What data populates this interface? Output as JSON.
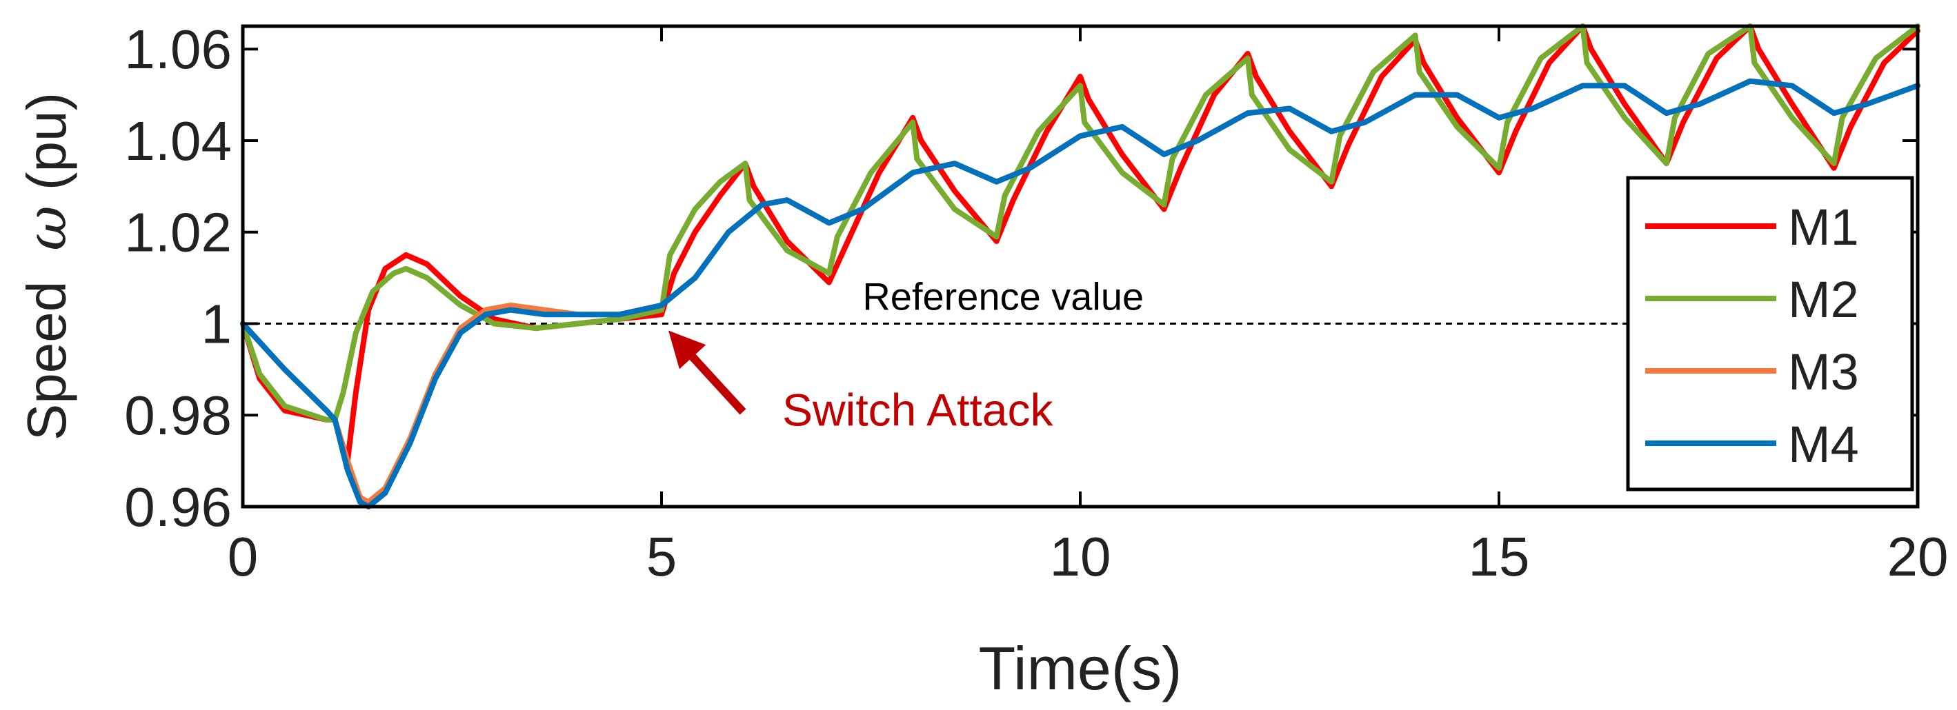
{
  "chart_data": {
    "type": "line",
    "xlabel": "Time(s)",
    "ylabel_prefix": "Speed",
    "ylabel_symbol": "ω",
    "ylabel_suffix": "(pu)",
    "xlim": [
      0,
      20
    ],
    "ylim": [
      0.96,
      1.065
    ],
    "x_ticks": [
      0,
      5,
      10,
      15,
      20
    ],
    "x_tick_labels": [
      "0",
      "5",
      "10",
      "15",
      "20"
    ],
    "y_ticks": [
      0.96,
      0.98,
      1.0,
      1.02,
      1.04,
      1.06
    ],
    "y_tick_labels": [
      "0.96",
      "0.98",
      "1",
      "1.02",
      "1.04",
      "1.06"
    ],
    "grid": false,
    "legend_position": "right",
    "reference": {
      "value": 1.0,
      "label": "Reference value",
      "style": "dashed"
    },
    "annotation": {
      "text": "Switch Attack",
      "x": 5,
      "y": 1.0,
      "color": "#c00000"
    },
    "series": [
      {
        "name": "M1",
        "color": "#ff0000",
        "points": [
          [
            0,
            1.0
          ],
          [
            0.2,
            0.988
          ],
          [
            0.5,
            0.981
          ],
          [
            1.0,
            0.979
          ],
          [
            1.1,
            0.979
          ],
          [
            1.25,
            0.97
          ],
          [
            1.35,
            0.985
          ],
          [
            1.5,
            1.003
          ],
          [
            1.7,
            1.012
          ],
          [
            1.95,
            1.015
          ],
          [
            2.2,
            1.013
          ],
          [
            2.6,
            1.006
          ],
          [
            3.0,
            1.001
          ],
          [
            3.5,
            0.999
          ],
          [
            4.0,
            1.0
          ],
          [
            4.5,
            1.001
          ],
          [
            5.0,
            1.002
          ],
          [
            5.15,
            1.011
          ],
          [
            5.4,
            1.02
          ],
          [
            5.7,
            1.028
          ],
          [
            6.0,
            1.035
          ],
          [
            6.1,
            1.03
          ],
          [
            6.5,
            1.018
          ],
          [
            7.0,
            1.009
          ],
          [
            7.2,
            1.017
          ],
          [
            7.6,
            1.033
          ],
          [
            8.0,
            1.045
          ],
          [
            8.1,
            1.04
          ],
          [
            8.5,
            1.029
          ],
          [
            9.0,
            1.018
          ],
          [
            9.2,
            1.027
          ],
          [
            9.6,
            1.042
          ],
          [
            10.0,
            1.054
          ],
          [
            10.1,
            1.049
          ],
          [
            10.5,
            1.037
          ],
          [
            11.0,
            1.025
          ],
          [
            11.2,
            1.034
          ],
          [
            11.6,
            1.05
          ],
          [
            12.0,
            1.059
          ],
          [
            12.1,
            1.054
          ],
          [
            12.5,
            1.042
          ],
          [
            13.0,
            1.03
          ],
          [
            13.2,
            1.039
          ],
          [
            13.6,
            1.054
          ],
          [
            14.0,
            1.062
          ],
          [
            14.1,
            1.057
          ],
          [
            14.5,
            1.045
          ],
          [
            15.0,
            1.033
          ],
          [
            15.2,
            1.042
          ],
          [
            15.6,
            1.057
          ],
          [
            16.0,
            1.065
          ],
          [
            16.1,
            1.06
          ],
          [
            16.5,
            1.048
          ],
          [
            17.0,
            1.035
          ],
          [
            17.2,
            1.044
          ],
          [
            17.6,
            1.058
          ],
          [
            18.0,
            1.065
          ],
          [
            18.1,
            1.06
          ],
          [
            18.5,
            1.048
          ],
          [
            19.0,
            1.034
          ],
          [
            19.2,
            1.043
          ],
          [
            19.6,
            1.057
          ],
          [
            20.0,
            1.064
          ]
        ]
      },
      {
        "name": "M2",
        "color": "#77ac30",
        "points": [
          [
            0,
            1.0
          ],
          [
            0.2,
            0.989
          ],
          [
            0.5,
            0.982
          ],
          [
            1.0,
            0.979
          ],
          [
            1.1,
            0.979
          ],
          [
            1.2,
            0.985
          ],
          [
            1.35,
            0.998
          ],
          [
            1.55,
            1.007
          ],
          [
            1.8,
            1.011
          ],
          [
            1.95,
            1.012
          ],
          [
            2.2,
            1.01
          ],
          [
            2.6,
            1.004
          ],
          [
            3.0,
            1.0
          ],
          [
            3.5,
            0.999
          ],
          [
            4.0,
            1.0
          ],
          [
            4.5,
            1.001
          ],
          [
            5.0,
            1.003
          ],
          [
            5.1,
            1.015
          ],
          [
            5.4,
            1.025
          ],
          [
            5.7,
            1.031
          ],
          [
            6.0,
            1.035
          ],
          [
            6.05,
            1.027
          ],
          [
            6.5,
            1.016
          ],
          [
            7.0,
            1.011
          ],
          [
            7.1,
            1.019
          ],
          [
            7.5,
            1.033
          ],
          [
            8.0,
            1.044
          ],
          [
            8.05,
            1.036
          ],
          [
            8.5,
            1.025
          ],
          [
            9.0,
            1.019
          ],
          [
            9.1,
            1.028
          ],
          [
            9.5,
            1.042
          ],
          [
            10.0,
            1.052
          ],
          [
            10.05,
            1.044
          ],
          [
            10.5,
            1.033
          ],
          [
            11.0,
            1.026
          ],
          [
            11.1,
            1.036
          ],
          [
            11.5,
            1.05
          ],
          [
            12.0,
            1.058
          ],
          [
            12.05,
            1.05
          ],
          [
            12.5,
            1.038
          ],
          [
            13.0,
            1.031
          ],
          [
            13.1,
            1.041
          ],
          [
            13.5,
            1.055
          ],
          [
            14.0,
            1.063
          ],
          [
            14.05,
            1.055
          ],
          [
            14.5,
            1.043
          ],
          [
            15.0,
            1.034
          ],
          [
            15.1,
            1.044
          ],
          [
            15.5,
            1.058
          ],
          [
            16.0,
            1.065
          ],
          [
            16.05,
            1.057
          ],
          [
            16.5,
            1.045
          ],
          [
            17.0,
            1.035
          ],
          [
            17.1,
            1.045
          ],
          [
            17.5,
            1.059
          ],
          [
            18.0,
            1.065
          ],
          [
            18.05,
            1.057
          ],
          [
            18.5,
            1.045
          ],
          [
            19.0,
            1.035
          ],
          [
            19.1,
            1.045
          ],
          [
            19.5,
            1.058
          ],
          [
            20.0,
            1.065
          ]
        ]
      },
      {
        "name": "M3",
        "color": "#f5793a",
        "points": [
          [
            0,
            1.0
          ],
          [
            0.5,
            0.99
          ],
          [
            1.0,
            0.981
          ],
          [
            1.1,
            0.979
          ],
          [
            1.25,
            0.97
          ],
          [
            1.4,
            0.962
          ],
          [
            1.5,
            0.961
          ],
          [
            1.7,
            0.964
          ],
          [
            2.0,
            0.975
          ],
          [
            2.3,
            0.989
          ],
          [
            2.6,
            0.999
          ],
          [
            2.9,
            1.003
          ],
          [
            3.2,
            1.004
          ],
          [
            3.6,
            1.003
          ],
          [
            4.0,
            1.002
          ],
          [
            4.5,
            1.002
          ],
          [
            5.0,
            1.004
          ],
          [
            5.4,
            1.01
          ],
          [
            5.8,
            1.02
          ],
          [
            6.2,
            1.026
          ],
          [
            6.5,
            1.027
          ],
          [
            7.0,
            1.022
          ],
          [
            7.4,
            1.025
          ],
          [
            8.0,
            1.033
          ],
          [
            8.5,
            1.035
          ],
          [
            9.0,
            1.031
          ],
          [
            9.4,
            1.034
          ],
          [
            10.0,
            1.041
          ],
          [
            10.5,
            1.043
          ],
          [
            11.0,
            1.037
          ],
          [
            11.4,
            1.04
          ],
          [
            12.0,
            1.046
          ],
          [
            12.5,
            1.047
          ],
          [
            13.0,
            1.042
          ],
          [
            13.4,
            1.044
          ],
          [
            14.0,
            1.05
          ],
          [
            14.5,
            1.05
          ],
          [
            15.0,
            1.045
          ],
          [
            15.4,
            1.047
          ],
          [
            16.0,
            1.052
          ],
          [
            16.5,
            1.052
          ],
          [
            17.0,
            1.046
          ],
          [
            17.4,
            1.048
          ],
          [
            18.0,
            1.053
          ],
          [
            18.5,
            1.052
          ],
          [
            19.0,
            1.046
          ],
          [
            19.4,
            1.048
          ],
          [
            20.0,
            1.052
          ]
        ]
      },
      {
        "name": "M4",
        "color": "#0072bd",
        "points": [
          [
            0,
            1.0
          ],
          [
            0.5,
            0.99
          ],
          [
            1.0,
            0.981
          ],
          [
            1.1,
            0.979
          ],
          [
            1.25,
            0.968
          ],
          [
            1.4,
            0.961
          ],
          [
            1.5,
            0.96
          ],
          [
            1.7,
            0.963
          ],
          [
            2.0,
            0.974
          ],
          [
            2.3,
            0.988
          ],
          [
            2.6,
            0.998
          ],
          [
            2.9,
            1.002
          ],
          [
            3.2,
            1.003
          ],
          [
            3.6,
            1.002
          ],
          [
            4.0,
            1.002
          ],
          [
            4.5,
            1.002
          ],
          [
            5.0,
            1.004
          ],
          [
            5.4,
            1.01
          ],
          [
            5.8,
            1.02
          ],
          [
            6.2,
            1.026
          ],
          [
            6.5,
            1.027
          ],
          [
            7.0,
            1.022
          ],
          [
            7.4,
            1.025
          ],
          [
            8.0,
            1.033
          ],
          [
            8.5,
            1.035
          ],
          [
            9.0,
            1.031
          ],
          [
            9.4,
            1.034
          ],
          [
            10.0,
            1.041
          ],
          [
            10.5,
            1.043
          ],
          [
            11.0,
            1.037
          ],
          [
            11.4,
            1.04
          ],
          [
            12.0,
            1.046
          ],
          [
            12.5,
            1.047
          ],
          [
            13.0,
            1.042
          ],
          [
            13.4,
            1.044
          ],
          [
            14.0,
            1.05
          ],
          [
            14.5,
            1.05
          ],
          [
            15.0,
            1.045
          ],
          [
            15.4,
            1.047
          ],
          [
            16.0,
            1.052
          ],
          [
            16.5,
            1.052
          ],
          [
            17.0,
            1.046
          ],
          [
            17.4,
            1.048
          ],
          [
            18.0,
            1.053
          ],
          [
            18.5,
            1.052
          ],
          [
            19.0,
            1.046
          ],
          [
            19.4,
            1.048
          ],
          [
            20.0,
            1.052
          ]
        ]
      }
    ]
  }
}
